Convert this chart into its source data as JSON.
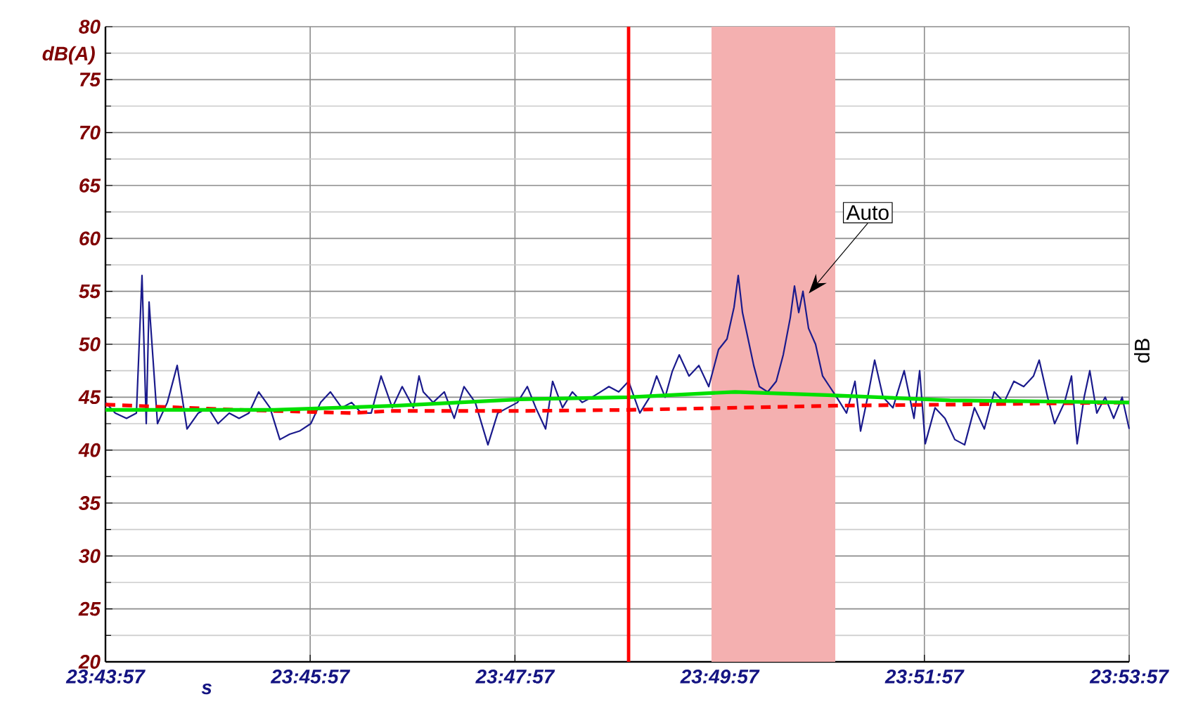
{
  "chart_data": {
    "type": "line",
    "xlabel": "s",
    "ylabel": "dB(A)",
    "y2label": "dB",
    "xlim": [
      23.7325,
      23.89917
    ],
    "ylim": [
      20,
      80
    ],
    "xticks": [
      {
        "value": 23.7325,
        "label": "23:43:57"
      },
      {
        "value": 23.76583,
        "label": "23:45:57"
      },
      {
        "value": 23.79917,
        "label": "23:47:57"
      },
      {
        "value": 23.8325,
        "label": "23:49:57"
      },
      {
        "value": 23.86583,
        "label": "23:51:57"
      },
      {
        "value": 23.89917,
        "label": "23:53:57"
      }
    ],
    "yticks": [
      20,
      25,
      30,
      35,
      40,
      45,
      50,
      55,
      60,
      65,
      70,
      75,
      80
    ],
    "grid": true,
    "series": [
      {
        "color": "#1a1a8c",
        "line_style": "solid",
        "x": [
          23.7325,
          23.7341,
          23.73593,
          23.73754,
          23.73845,
          23.73914,
          23.7396,
          23.74097,
          23.74257,
          23.74418,
          23.74578,
          23.74761,
          23.74921,
          23.75082,
          23.75265,
          23.75425,
          23.75585,
          23.75745,
          23.75929,
          23.76089,
          23.76249,
          23.76409,
          23.76593,
          23.76753,
          23.76913,
          23.77096,
          23.77256,
          23.77417,
          23.77577,
          23.77737,
          23.7792,
          23.78081,
          23.78264,
          23.78355,
          23.78424,
          23.78584,
          23.78767,
          23.78928,
          23.79088,
          23.79271,
          23.79477,
          23.79637,
          23.79798,
          23.79958,
          23.80118,
          23.80256,
          23.80416,
          23.8053,
          23.80691,
          23.80851,
          23.81011,
          23.81171,
          23.81309,
          23.81446,
          23.81606,
          23.81767,
          23.8195,
          23.8211,
          23.82224,
          23.82362,
          23.82476,
          23.82591,
          23.82751,
          23.82911,
          23.83072,
          23.83232,
          23.83369,
          23.83484,
          23.83552,
          23.83621,
          23.83713,
          23.83804,
          23.83896,
          23.84033,
          23.84171,
          23.84285,
          23.84399,
          23.84468,
          23.84537,
          23.84606,
          23.84697,
          23.84811,
          23.84926,
          23.8504,
          23.85155,
          23.85315,
          23.85453,
          23.85544,
          23.85659,
          23.85773,
          23.8591,
          23.86071,
          23.86254,
          23.86414,
          23.86506,
          23.86597,
          23.86757,
          23.86918,
          23.87078,
          23.87238,
          23.87398,
          23.87559,
          23.87719,
          23.87879,
          23.8804,
          23.882,
          23.8836,
          23.88452,
          23.88589,
          23.88703,
          23.88864,
          23.88978,
          23.8907,
          23.89184,
          23.89276,
          23.8939,
          23.89527,
          23.89665,
          23.89802,
          23.89917
        ],
        "values": [
          44.5,
          43.5,
          43,
          43.5,
          56.5,
          42.5,
          54,
          42.5,
          44.5,
          48,
          42,
          43.5,
          44,
          42.5,
          43.5,
          43,
          43.5,
          45.5,
          44,
          41,
          41.5,
          41.8,
          42.5,
          44.5,
          45.5,
          44,
          44.5,
          43.5,
          43.5,
          47,
          44,
          46,
          44,
          47,
          45.5,
          44.5,
          45.5,
          43,
          46,
          44.5,
          40.5,
          43.5,
          44,
          44.5,
          46,
          44,
          42,
          46.5,
          44,
          45.5,
          44.5,
          45,
          45.5,
          46,
          45.5,
          46.5,
          43.5,
          45,
          47,
          45,
          47.4,
          49,
          47,
          48,
          46,
          49.5,
          50.5,
          53.5,
          56.5,
          53,
          50.5,
          48,
          46,
          45.5,
          46.5,
          49,
          52.5,
          55.5,
          53,
          55,
          51.5,
          50,
          47,
          46,
          45,
          43.5,
          46.5,
          41.8,
          45,
          48.5,
          45,
          44,
          47.5,
          43,
          47.5,
          40.6,
          44,
          43,
          41,
          40.5,
          44,
          42,
          45.5,
          44.5,
          46.5,
          46,
          47,
          48.5,
          45,
          42.5,
          44.5,
          47,
          40.6,
          45,
          47.5,
          43.5,
          45,
          43,
          45,
          42
        ]
      },
      {
        "color": "#ff0000",
        "line_style": "dashed",
        "x": [
          23.7325,
          23.75425,
          23.77256,
          23.7792,
          23.8,
          23.81767,
          23.85155,
          23.87,
          23.89917
        ],
        "values": [
          44.3,
          43.8,
          43.5,
          43.7,
          43.7,
          43.8,
          44.2,
          44.3,
          44.5
        ]
      },
      {
        "color": "#00e000",
        "line_style": "solid",
        "x": [
          23.7325,
          23.76,
          23.78,
          23.8,
          23.81767,
          23.835,
          23.85,
          23.87,
          23.89917
        ],
        "values": [
          43.8,
          43.8,
          44.2,
          44.8,
          45,
          45.5,
          45.2,
          44.7,
          44.5
        ]
      }
    ],
    "ref_lines": [
      {
        "axis": "x",
        "value": 23.81767,
        "color": "#ff0000"
      }
    ],
    "bands": [
      {
        "axis": "x",
        "from": 23.83117,
        "to": 23.85132,
        "color": "#f4b0b0"
      }
    ],
    "annotations": [
      "Auto"
    ]
  }
}
